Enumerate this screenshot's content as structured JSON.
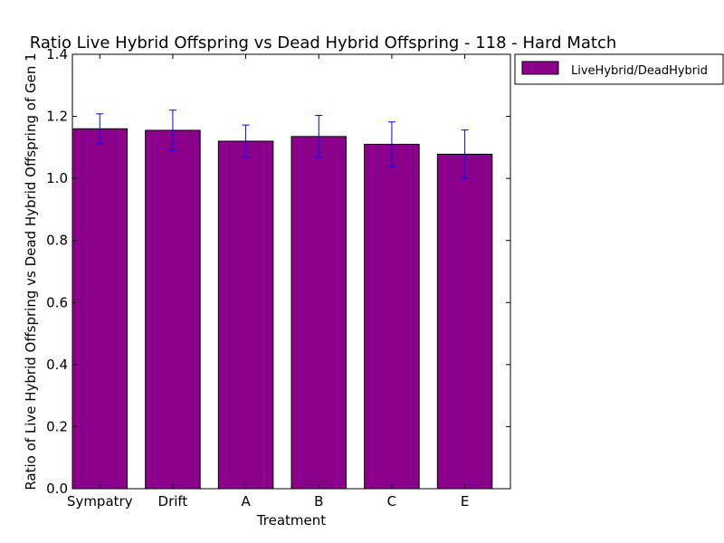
{
  "chart_data": {
    "type": "bar",
    "title": "Ratio Live Hybrid Offspring vs Dead Hybrid Offspring - 118 - Hard Match",
    "xlabel": "Treatment",
    "ylabel": "Ratio of Live Hybrid Offspring vs Dead Hybrid Offspring of Gen 1",
    "categories": [
      "Sympatry",
      "Drift",
      "A",
      "B",
      "C",
      "E"
    ],
    "series": [
      {
        "name": "LiveHybrid/DeadHybrid",
        "values": [
          1.16,
          1.155,
          1.12,
          1.135,
          1.11,
          1.078
        ],
        "error": [
          0.048,
          0.065,
          0.052,
          0.068,
          0.072,
          0.078
        ],
        "color": "#8b008b"
      }
    ],
    "ylim": [
      0.0,
      1.4
    ],
    "yticks": [
      "0.0",
      "0.2",
      "0.4",
      "0.6",
      "0.8",
      "1.0",
      "1.2",
      "1.4"
    ],
    "error_bar_color": "#0000ff",
    "grid": false,
    "legend_position": "outside-top-right"
  }
}
